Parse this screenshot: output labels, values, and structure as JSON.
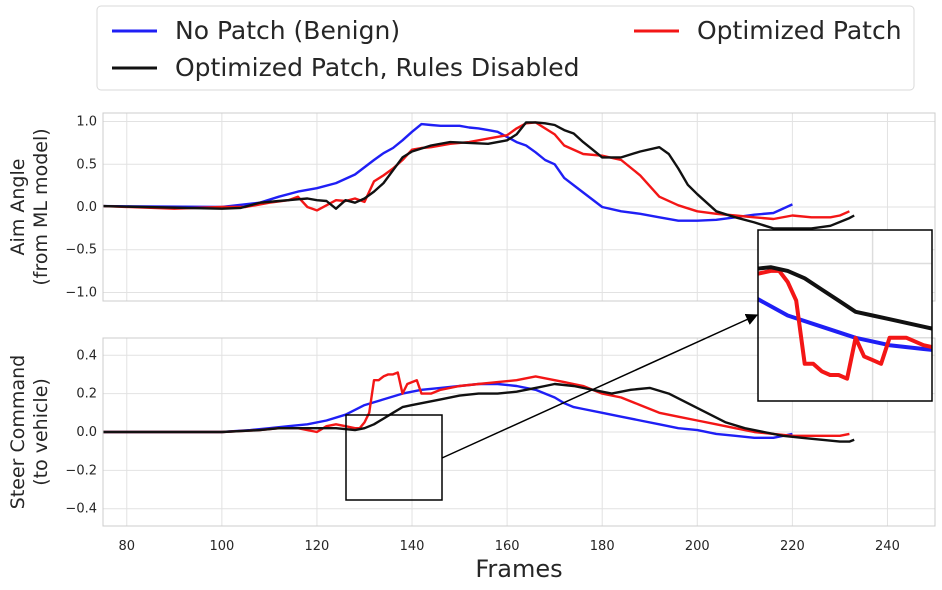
{
  "chart_data": {
    "type": "line",
    "legend": {
      "placement": "top",
      "entries": [
        {
          "label": "No Patch (Benign)",
          "color": "#1f1ff5"
        },
        {
          "label": "Optimized Patch",
          "color": "#f31616"
        },
        {
          "label": "Optimized Patch, Rules Disabled",
          "color": "#111111"
        }
      ]
    },
    "xlabel": "Frames",
    "xlim": [
      75,
      250
    ],
    "xticks": [
      "80",
      "100",
      "120",
      "140",
      "160",
      "180",
      "200",
      "220",
      "240"
    ],
    "grid": true,
    "subplots": [
      {
        "id": "aim",
        "ylabel_lines": [
          "Aim Angle",
          "(from ML model)"
        ],
        "ylim": [
          1.1,
          -1.1
        ],
        "inverted": true,
        "yticks": [
          "−1.0",
          "−0.5",
          "0.0",
          "0.5",
          "1.0"
        ],
        "series": [
          {
            "name": "No Patch (Benign)",
            "color": "#1f1ff5",
            "x": [
              75,
              100,
              108,
              112,
              116,
              120,
              124,
              128,
              132,
              134,
              136,
              138,
              140,
              142,
              144,
              146,
              148,
              150,
              152,
              154,
              156,
              158,
              160,
              162,
              164,
              166,
              168,
              170,
              172,
              176,
              180,
              184,
              188,
              192,
              196,
              200,
              204,
              208,
              212,
              216,
              220
            ],
            "y": [
              0.01,
              0.0,
              0.05,
              0.12,
              0.18,
              0.22,
              0.28,
              0.38,
              0.55,
              0.63,
              0.69,
              0.78,
              0.88,
              0.97,
              0.96,
              0.95,
              0.95,
              0.95,
              0.93,
              0.92,
              0.9,
              0.88,
              0.82,
              0.76,
              0.72,
              0.64,
              0.55,
              0.5,
              0.34,
              0.17,
              0.0,
              -0.05,
              -0.08,
              -0.12,
              -0.16,
              -0.16,
              -0.15,
              -0.12,
              -0.09,
              -0.07,
              0.03
            ]
          },
          {
            "name": "Optimized Patch",
            "color": "#f31616",
            "x": [
              75,
              90,
              100,
              105,
              110,
              114,
              116,
              118,
              120,
              122,
              124,
              126,
              128,
              130,
              132,
              134,
              136,
              138,
              140,
              142,
              144,
              148,
              152,
              156,
              160,
              162,
              164,
              166,
              168,
              170,
              172,
              176,
              180,
              184,
              188,
              192,
              196,
              200,
              204,
              208,
              212,
              216,
              220,
              224,
              228,
              230,
              232
            ],
            "y": [
              0.01,
              -0.02,
              0.0,
              0.0,
              0.05,
              0.08,
              0.12,
              0.0,
              -0.04,
              0.02,
              0.08,
              0.07,
              0.1,
              0.06,
              0.3,
              0.37,
              0.45,
              0.55,
              0.67,
              0.69,
              0.7,
              0.74,
              0.76,
              0.8,
              0.84,
              0.92,
              0.98,
              0.99,
              0.92,
              0.85,
              0.72,
              0.62,
              0.6,
              0.55,
              0.37,
              0.12,
              0.02,
              -0.05,
              -0.08,
              -0.1,
              -0.12,
              -0.14,
              -0.1,
              -0.12,
              -0.12,
              -0.1,
              -0.05
            ]
          },
          {
            "name": "Optimized Patch, Rules Disabled",
            "color": "#111111",
            "x": [
              75,
              100,
              104,
              108,
              112,
              116,
              118,
              120,
              122,
              124,
              126,
              128,
              130,
              132,
              134,
              136,
              138,
              140,
              144,
              148,
              152,
              156,
              160,
              162,
              164,
              166,
              168,
              170,
              172,
              174,
              176,
              178,
              180,
              184,
              188,
              192,
              194,
              196,
              198,
              200,
              204,
              208,
              212,
              216,
              220,
              224,
              228,
              232,
              233
            ],
            "y": [
              0.01,
              -0.02,
              -0.01,
              0.05,
              0.07,
              0.09,
              0.1,
              0.08,
              0.07,
              -0.02,
              0.08,
              0.05,
              0.1,
              0.18,
              0.28,
              0.43,
              0.58,
              0.65,
              0.72,
              0.76,
              0.75,
              0.74,
              0.78,
              0.85,
              0.99,
              0.99,
              0.98,
              0.96,
              0.9,
              0.86,
              0.76,
              0.67,
              0.58,
              0.58,
              0.65,
              0.7,
              0.62,
              0.45,
              0.26,
              0.15,
              -0.05,
              -0.12,
              -0.18,
              -0.25,
              -0.25,
              -0.25,
              -0.22,
              -0.13,
              -0.1
            ]
          }
        ]
      },
      {
        "id": "steer",
        "ylabel_lines": [
          "Steer Command",
          "(to vehicle)"
        ],
        "ylim": [
          0.49,
          -0.49
        ],
        "inverted": true,
        "yticks": [
          "−0.4",
          "−0.2",
          "0.0",
          "0.2",
          "0.4"
        ],
        "series": [
          {
            "name": "No Patch (Benign)",
            "color": "#1f1ff5",
            "x": [
              75,
              100,
              106,
              110,
              114,
              118,
              122,
              126,
              130,
              134,
              138,
              142,
              146,
              150,
              154,
              158,
              162,
              164,
              166,
              168,
              170,
              172,
              174,
              176,
              180,
              184,
              188,
              192,
              196,
              200,
              204,
              208,
              212,
              216,
              220
            ],
            "y": [
              0.0,
              0.0,
              0.01,
              0.02,
              0.03,
              0.04,
              0.06,
              0.09,
              0.14,
              0.17,
              0.2,
              0.22,
              0.23,
              0.24,
              0.25,
              0.25,
              0.24,
              0.23,
              0.22,
              0.2,
              0.18,
              0.15,
              0.13,
              0.12,
              0.1,
              0.08,
              0.06,
              0.04,
              0.02,
              0.01,
              -0.01,
              -0.02,
              -0.03,
              -0.03,
              -0.01
            ]
          },
          {
            "name": "Optimized Patch",
            "color": "#f31616",
            "x": [
              75,
              100,
              108,
              112,
              116,
              120,
              122,
              124,
              126,
              128,
              129,
              130,
              131,
              132,
              133,
              134,
              135,
              136,
              137,
              138,
              139,
              140,
              141,
              142,
              143,
              144,
              146,
              150,
              154,
              158,
              162,
              166,
              168,
              170,
              172,
              176,
              180,
              184,
              188,
              192,
              196,
              200,
              204,
              208,
              212,
              216,
              220,
              224,
              228,
              230,
              232
            ],
            "y": [
              0.0,
              0.0,
              0.01,
              0.02,
              0.02,
              0.0,
              0.03,
              0.04,
              0.03,
              0.02,
              0.02,
              0.05,
              0.1,
              0.27,
              0.27,
              0.29,
              0.3,
              0.3,
              0.31,
              0.2,
              0.25,
              0.26,
              0.27,
              0.2,
              0.2,
              0.2,
              0.22,
              0.24,
              0.25,
              0.26,
              0.27,
              0.29,
              0.28,
              0.27,
              0.26,
              0.24,
              0.2,
              0.18,
              0.14,
              0.1,
              0.08,
              0.06,
              0.04,
              0.02,
              0.0,
              -0.01,
              -0.02,
              -0.02,
              -0.02,
              -0.02,
              -0.01
            ]
          },
          {
            "name": "Optimized Patch, Rules Disabled",
            "color": "#111111",
            "x": [
              75,
              100,
              108,
              112,
              116,
              120,
              124,
              128,
              130,
              132,
              134,
              136,
              138,
              140,
              142,
              146,
              150,
              154,
              158,
              162,
              166,
              168,
              170,
              174,
              178,
              182,
              186,
              190,
              194,
              198,
              202,
              206,
              210,
              214,
              218,
              222,
              226,
              230,
              232,
              233
            ],
            "y": [
              0.0,
              0.0,
              0.01,
              0.02,
              0.02,
              0.02,
              0.02,
              0.01,
              0.02,
              0.04,
              0.07,
              0.1,
              0.13,
              0.14,
              0.15,
              0.17,
              0.19,
              0.2,
              0.2,
              0.21,
              0.23,
              0.24,
              0.25,
              0.24,
              0.22,
              0.2,
              0.22,
              0.23,
              0.2,
              0.15,
              0.1,
              0.05,
              0.02,
              0.0,
              -0.02,
              -0.03,
              -0.04,
              -0.05,
              -0.05,
              -0.04
            ]
          }
        ]
      }
    ]
  }
}
